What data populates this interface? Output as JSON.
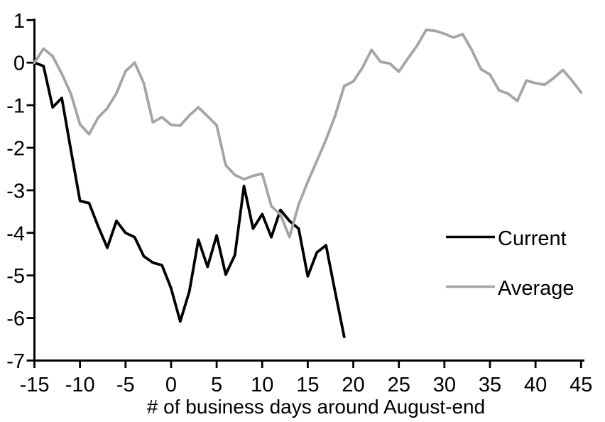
{
  "chart_data": {
    "type": "line",
    "title": "",
    "xlabel": "# of business days around August-end",
    "ylabel": "",
    "xlim": [
      -15,
      45
    ],
    "ylim": [
      -7,
      1
    ],
    "grid": false,
    "legend_position": "right-middle",
    "x_ticks": [
      -15,
      -10,
      -5,
      0,
      5,
      10,
      15,
      20,
      25,
      30,
      35,
      40,
      45
    ],
    "y_ticks": [
      1,
      0,
      -1,
      -2,
      -3,
      -4,
      -5,
      -6,
      -7
    ],
    "axis_color": "#000000",
    "background_color": "#ffffff",
    "series": [
      {
        "name": "Current",
        "color": "#000000",
        "x_start": -15,
        "x_step": 1,
        "values": [
          0,
          -0.08,
          -1.05,
          -0.83,
          -2.05,
          -3.25,
          -3.3,
          -3.85,
          -4.35,
          -3.72,
          -4.0,
          -4.1,
          -4.55,
          -4.7,
          -4.76,
          -5.3,
          -6.08,
          -5.38,
          -4.16,
          -4.8,
          -4.06,
          -4.98,
          -4.52,
          -2.9,
          -3.9,
          -3.56,
          -4.1,
          -3.46,
          -3.72,
          -3.9,
          -5.02,
          -4.46,
          -4.29,
          -5.38,
          -6.44
        ]
      },
      {
        "name": "Average",
        "color": "#a5a5a5",
        "x_start": -15,
        "x_step": 1,
        "values": [
          0,
          0.33,
          0.15,
          -0.26,
          -0.73,
          -1.45,
          -1.68,
          -1.29,
          -1.07,
          -0.72,
          -0.2,
          0.0,
          -0.48,
          -1.4,
          -1.28,
          -1.46,
          -1.48,
          -1.24,
          -1.05,
          -1.26,
          -1.47,
          -2.41,
          -2.64,
          -2.74,
          -2.66,
          -2.61,
          -3.37,
          -3.57,
          -4.1,
          -3.33,
          -2.8,
          -2.31,
          -1.81,
          -1.25,
          -0.55,
          -0.44,
          -0.12,
          0.3,
          0.02,
          -0.02,
          -0.21,
          0.1,
          0.4,
          0.77,
          0.75,
          0.68,
          0.59,
          0.67,
          0.3,
          -0.15,
          -0.28,
          -0.65,
          -0.73,
          -0.9,
          -0.42,
          -0.48,
          -0.52,
          -0.36,
          -0.17,
          -0.42,
          -0.7
        ]
      }
    ]
  }
}
